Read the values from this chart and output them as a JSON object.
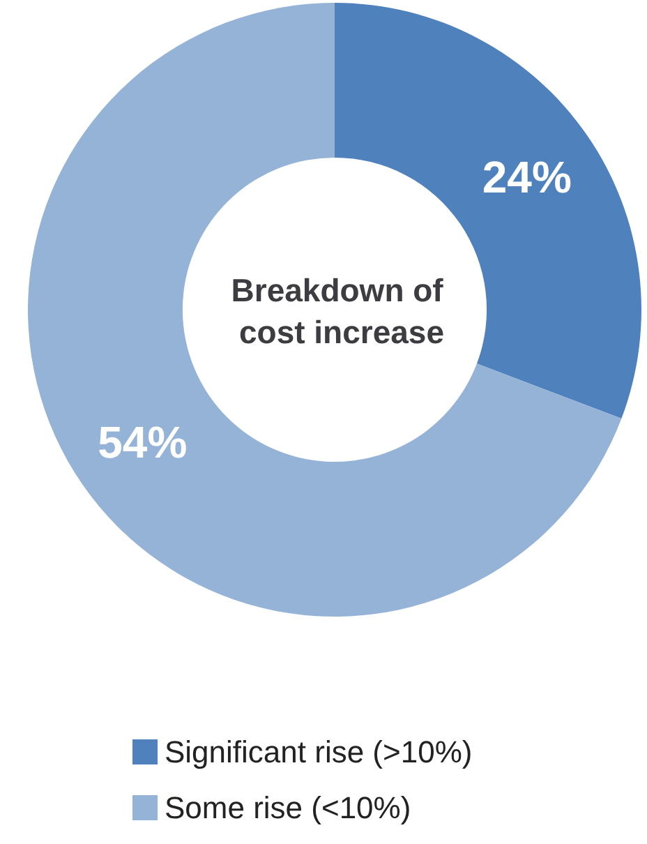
{
  "chart_data": {
    "type": "donut",
    "title": "Breakdown of cost increase",
    "categories": [
      "Significant rise (>10%)",
      "Some rise (<10%)"
    ],
    "values": [
      24,
      54
    ],
    "colors": [
      "#4f81bd",
      "#95b3d7"
    ],
    "value_labels": [
      "24%",
      "54%"
    ],
    "legend": "bottom"
  }
}
